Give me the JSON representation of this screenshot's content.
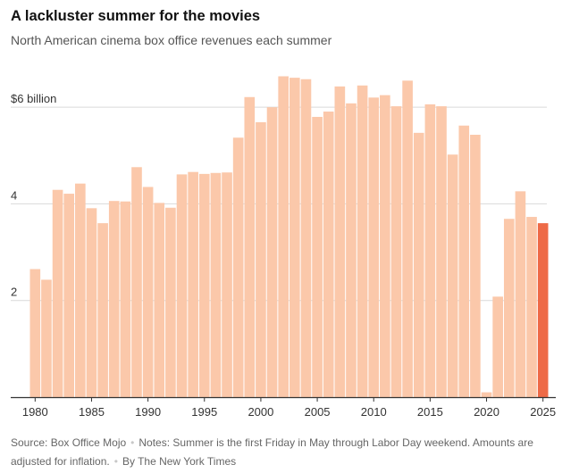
{
  "header": {
    "title": "A lackluster summer for the movies",
    "subtitle": "North American cinema box office revenues each summer"
  },
  "footer": {
    "source": "Source: Box Office Mojo",
    "notes": "Notes: Summer is the first Friday in May through Labor Day weekend. Amounts are adjusted for inflation.",
    "credit": "By The New York Times"
  },
  "colors": {
    "bar": "#fbc8aa",
    "highlight": "#ee6a47",
    "gridline": "#d9d9d9",
    "axis": "#333333"
  },
  "chart_data": {
    "type": "bar",
    "title": "A lackluster summer for the movies",
    "subtitle": "North American cinema box office revenues each summer",
    "xlabel": "",
    "ylabel": "",
    "unit": "billion USD (inflation-adjusted)",
    "ylim": [
      0,
      7
    ],
    "grid": true,
    "y_ticks": [
      {
        "value": 2,
        "label": "2"
      },
      {
        "value": 4,
        "label": "4"
      },
      {
        "value": 6,
        "label": "$6 billion"
      }
    ],
    "x_tick_labels": [
      "1980",
      "1985",
      "1990",
      "1995",
      "2000",
      "2005",
      "2010",
      "2015",
      "2020",
      "2025"
    ],
    "highlight_category": 2025,
    "categories": [
      1980,
      1981,
      1982,
      1983,
      1984,
      1985,
      1986,
      1987,
      1988,
      1989,
      1990,
      1991,
      1992,
      1993,
      1994,
      1995,
      1996,
      1997,
      1998,
      1999,
      2000,
      2001,
      2002,
      2003,
      2004,
      2005,
      2006,
      2007,
      2008,
      2009,
      2010,
      2011,
      2012,
      2013,
      2014,
      2015,
      2016,
      2017,
      2018,
      2019,
      2020,
      2021,
      2022,
      2023,
      2024,
      2025
    ],
    "values": [
      2.65,
      2.43,
      4.29,
      4.21,
      4.42,
      3.91,
      3.6,
      4.06,
      4.05,
      4.76,
      4.35,
      4.02,
      3.92,
      4.61,
      4.66,
      4.62,
      4.64,
      4.65,
      5.37,
      6.21,
      5.69,
      6.0,
      6.64,
      6.61,
      6.58,
      5.8,
      5.91,
      6.43,
      6.08,
      6.45,
      6.2,
      6.25,
      6.02,
      6.55,
      5.47,
      6.06,
      6.02,
      5.02,
      5.62,
      5.43,
      0.1,
      2.08,
      3.69,
      4.26,
      3.73,
      3.6
    ]
  }
}
